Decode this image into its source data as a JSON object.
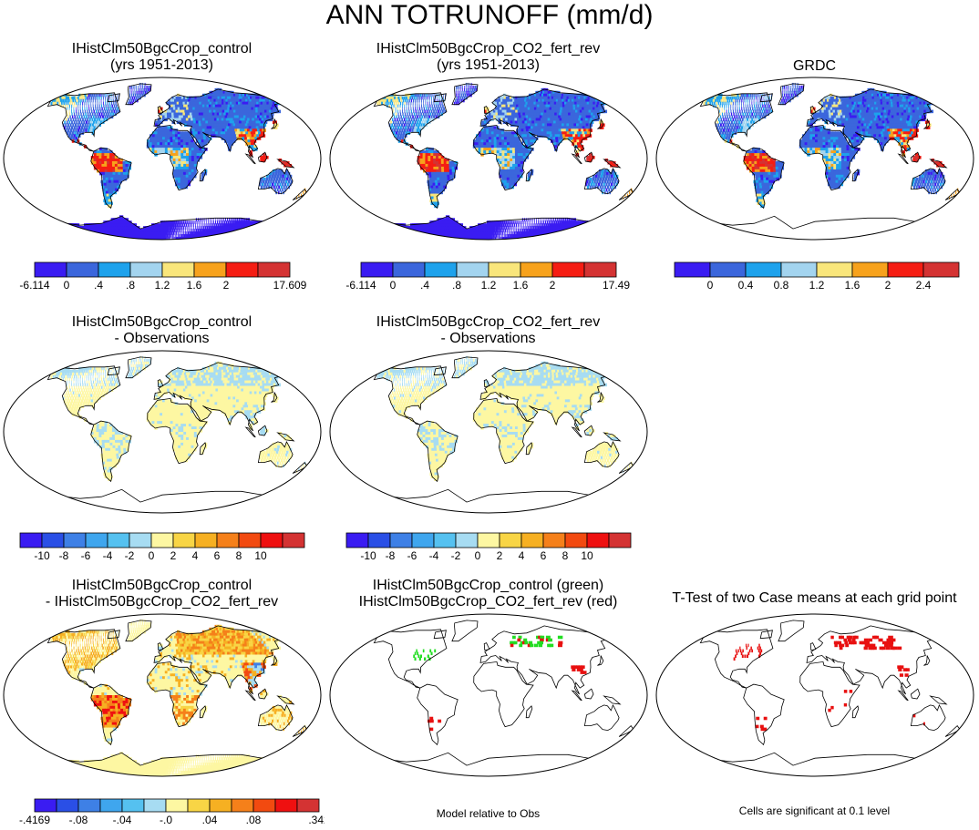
{
  "main_title": "ANN TOTRUNOFF (mm/d)",
  "colors": {
    "abs": [
      "#3a1cf2",
      "#3b66dc",
      "#1ea2ec",
      "#a3d4ef",
      "#f9e67b",
      "#f7a21c",
      "#f51d13",
      "#d43333"
    ],
    "diff": [
      "#3a1cf2",
      "#2a4fe6",
      "#3e80e6",
      "#3fa6ee",
      "#55c1f0",
      "#a7dcf2",
      "#fdf7a2",
      "#f8d545",
      "#f6b022",
      "#f5801a",
      "#f24a10",
      "#ef1010",
      "#d43333"
    ],
    "tt_green": "#22dd22",
    "tt_red": "#e81010",
    "coast": "#000000"
  },
  "panels": [
    {
      "id": "control",
      "title": [
        "IHistClm50BgcCrop_control",
        "(yrs 1951-2013)"
      ],
      "style": "abs"
    },
    {
      "id": "co2",
      "title": [
        "IHistClm50BgcCrop_CO2_fert_rev",
        "(yrs 1951-2013)"
      ],
      "style": "abs"
    },
    {
      "id": "grdc",
      "title": [
        "GRDC",
        ""
      ],
      "style": "abs-obs"
    },
    {
      "id": "control-obs",
      "title": [
        "IHistClm50BgcCrop_control",
        "- Observations"
      ],
      "style": "bias"
    },
    {
      "id": "co2-obs",
      "title": [
        "IHistClm50BgcCrop_CO2_fert_rev",
        "- Observations"
      ],
      "style": "bias"
    },
    {
      "id": "control-co2",
      "title": [
        "IHistClm50BgcCrop_control",
        "- IHistClm50BgcCrop_CO2_fert_rev"
      ],
      "style": "casediff"
    },
    {
      "id": "green-red",
      "title": [
        "IHistClm50BgcCrop_control (green)",
        "IHistClm50BgcCrop_CO2_fert_rev (red)"
      ],
      "style": "greenred"
    },
    {
      "id": "ttest",
      "title": [
        "T-Test of two Case means at each grid point",
        ""
      ],
      "style": "ttest"
    }
  ],
  "colorbars": {
    "control": [
      "-6.114",
      "0",
      ".4",
      ".8",
      "1.2",
      "1.6",
      "2",
      "17.609"
    ],
    "co2": [
      "-6.114",
      "0",
      ".4",
      ".8",
      "1.2",
      "1.6",
      "2",
      "17.49"
    ],
    "grdc": [
      "0",
      "0.4",
      "0.8",
      "1.2",
      "1.6",
      "2",
      "2.4"
    ],
    "bias": [
      "-10",
      "-8",
      "-6",
      "-4",
      "-2",
      "0",
      "2",
      "4",
      "6",
      "8",
      "10"
    ],
    "casediff": [
      "-.4169",
      "-.08",
      "-.04",
      "-.0",
      ".04",
      ".08",
      ".342"
    ]
  },
  "notes": {
    "model_rel": "Model relative to Obs",
    "significance": "Cells are significant at 0.1 level"
  }
}
